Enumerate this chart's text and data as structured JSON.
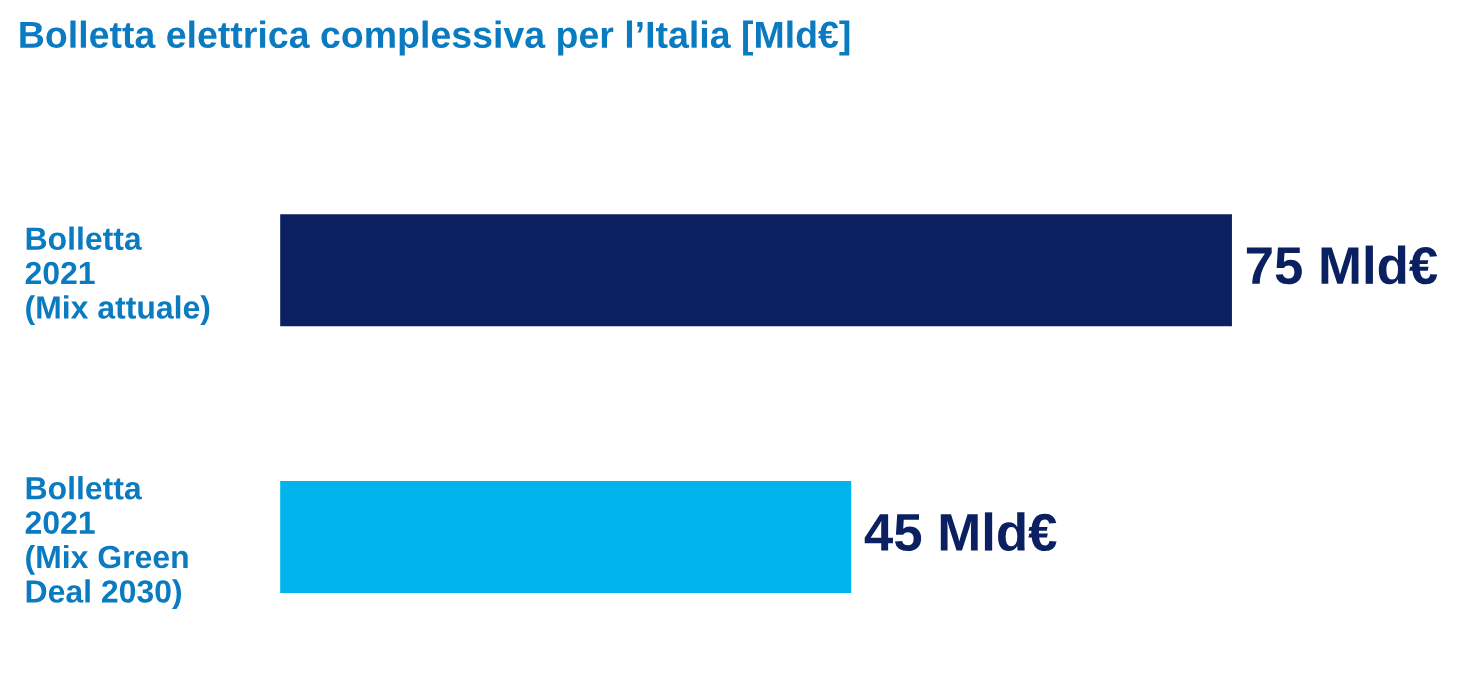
{
  "chart_data": {
    "type": "bar",
    "orientation": "horizontal",
    "title": "Bolletta elettrica complessiva per l’Italia [Mld€]",
    "categories": [
      "Bolletta\n2021\n(Mix attuale)",
      "Bolletta\n2021\n(Mix Green\nDeal 2030)"
    ],
    "values": [
      75,
      45
    ],
    "colors": [
      "#0b2060",
      "#00b4ee"
    ],
    "value_labels": [
      "75 Mld€",
      "45 Mld€"
    ],
    "grid": false,
    "legend": false,
    "tick_labels": "y"
  }
}
